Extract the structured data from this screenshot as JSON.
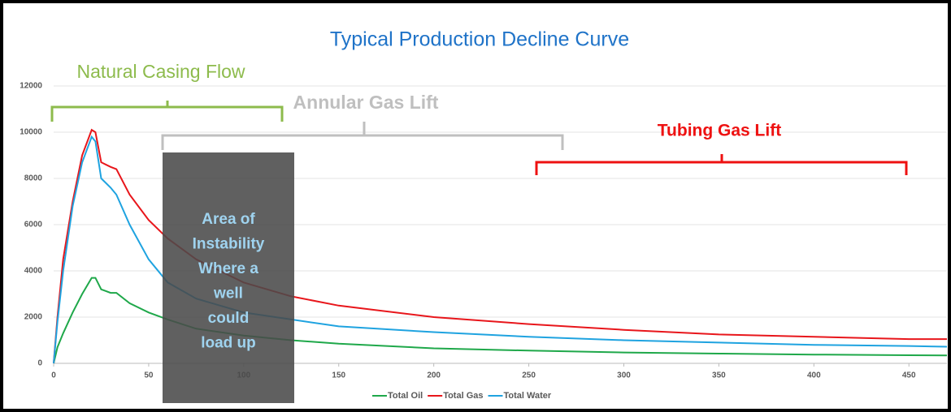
{
  "chart_data": {
    "type": "line",
    "title": "Typical Production Decline Curve",
    "x": [
      0,
      2,
      5,
      10,
      15,
      20,
      22,
      25,
      30,
      33,
      40,
      50,
      60,
      75,
      100,
      125,
      150,
      200,
      250,
      300,
      350,
      400,
      450,
      470
    ],
    "series": [
      {
        "name": "Total Oil",
        "color": "#1fa84a",
        "values": [
          0,
          700,
          1300,
          2200,
          3000,
          3700,
          3700,
          3200,
          3050,
          3050,
          2600,
          2200,
          1900,
          1500,
          1200,
          1000,
          850,
          650,
          550,
          470,
          420,
          380,
          350,
          340
        ]
      },
      {
        "name": "Total Gas",
        "color": "#e8161b",
        "values": [
          0,
          2000,
          4500,
          7000,
          9000,
          10100,
          10000,
          8700,
          8500,
          8400,
          7300,
          6200,
          5400,
          4500,
          3500,
          2900,
          2500,
          2000,
          1700,
          1450,
          1250,
          1150,
          1050,
          1050
        ]
      },
      {
        "name": "Total Water",
        "color": "#1fa3e0",
        "values": [
          0,
          1800,
          4000,
          6800,
          8700,
          9800,
          9600,
          8000,
          7600,
          7300,
          6000,
          4500,
          3500,
          2800,
          2200,
          1900,
          1600,
          1350,
          1150,
          1000,
          900,
          800,
          750,
          720
        ]
      }
    ],
    "xlim": [
      0,
      470
    ],
    "xticks": [
      0,
      50,
      100,
      150,
      200,
      250,
      300,
      350,
      400,
      450
    ],
    "ylim": [
      0,
      12000
    ],
    "yticks": [
      0,
      2000,
      4000,
      6000,
      8000,
      10000,
      12000
    ],
    "grid": true,
    "legend": "bottom",
    "annotations": {
      "natural_casing_flow": "Natural Casing Flow",
      "annular_gas_lift": "Annular Gas Lift",
      "tubing_gas_lift": "Tubing Gas Lift",
      "instability_box": [
        "Area of",
        "Instability",
        "Where a",
        "well",
        "could",
        "load up"
      ]
    }
  }
}
